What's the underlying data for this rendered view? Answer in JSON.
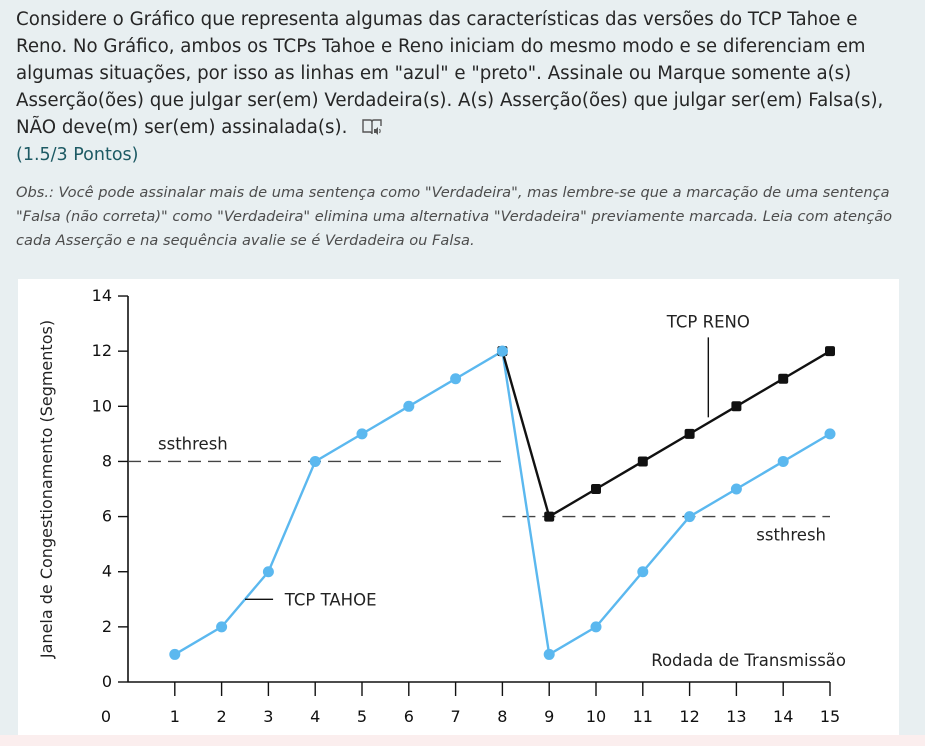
{
  "question": {
    "text": "Considere o Gráfico que representa algumas das características das versões do TCP Tahoe e Reno. No Gráfico, ambos os TCPs Tahoe e Reno iniciam do mesmo modo e se diferenciam em algumas situações, por isso as linhas em \"azul\" e \"preto\". Assinale ou Marque somente a(s) Asserção(ões) que julgar ser(em) Verdadeira(s). A(s) Asserção(ões) que julgar ser(em) Falsa(s), NÃO deve(m) ser(em) assinalada(s).",
    "points": "(1.5/3 Pontos)",
    "obs": "Obs.: Você pode assinalar mais de uma sentença como \"Verdadeira\", mas lembre-se que a marcação de uma sentença \"Falsa (não correta)\" como \"Verdadeira\" elimina uma alternativa \"Verdadeira\" previamente marcada. Leia com atenção cada Asserção e na sequência avalie se é Verdadeira ou Falsa.",
    "icon": "immersive-reader-icon"
  },
  "chart_data": {
    "type": "line",
    "xlabel": "Rodada de Transmissão",
    "ylabel": "Janela de Congestionamento (Segmentos)",
    "xlim": [
      0,
      15
    ],
    "ylim": [
      0,
      14
    ],
    "x_ticks": [
      0,
      1,
      2,
      3,
      4,
      5,
      6,
      7,
      8,
      9,
      10,
      11,
      12,
      13,
      14,
      15
    ],
    "y_ticks": [
      0,
      2,
      4,
      6,
      8,
      10,
      12,
      14
    ],
    "grid": false,
    "series": [
      {
        "name": "TCP TAHOE",
        "color": "#5bb8ef",
        "x": [
          1,
          2,
          3,
          4,
          5,
          6,
          7,
          8,
          9,
          10,
          11,
          12,
          13,
          14,
          15
        ],
        "values": [
          1,
          2,
          4,
          8,
          9,
          10,
          11,
          12,
          1,
          2,
          4,
          6,
          7,
          8,
          9
        ]
      },
      {
        "name": "TCP RENO",
        "color": "#111111",
        "x": [
          8,
          9,
          10,
          11,
          12,
          13,
          14,
          15
        ],
        "values": [
          12,
          6,
          7,
          8,
          9,
          10,
          11,
          12
        ]
      }
    ],
    "thresholds": [
      {
        "label": "ssthresh",
        "value": 8,
        "x_from": 0,
        "x_to": 8
      },
      {
        "label": "ssthresh",
        "value": 6,
        "x_from": 8,
        "x_to": 15
      }
    ]
  }
}
